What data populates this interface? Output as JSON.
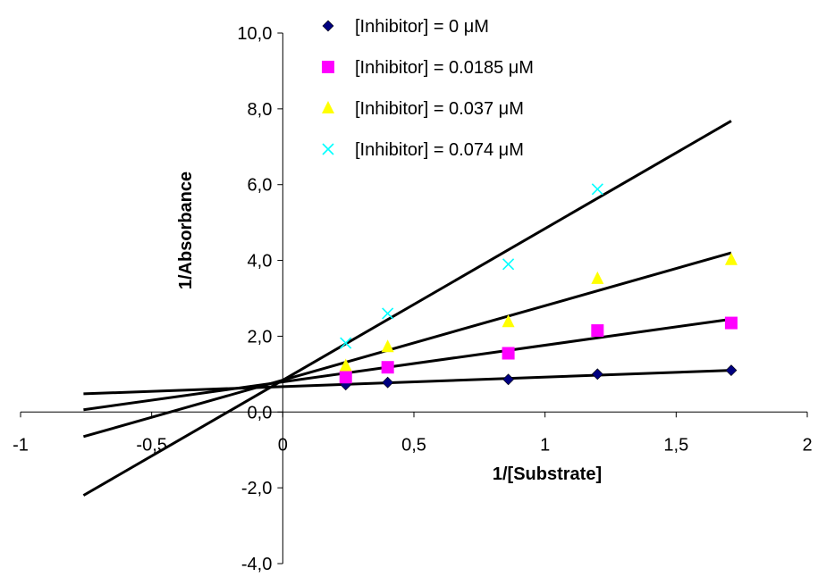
{
  "chart_data": {
    "type": "scatter",
    "title": "",
    "xlabel": "1/[Substrate]",
    "ylabel": "1/Absorbance",
    "xlim": [
      -1,
      2
    ],
    "ylim": [
      -4,
      10
    ],
    "x_ticks": [
      -1,
      -0.5,
      0,
      0.5,
      1,
      1.5,
      2
    ],
    "x_tick_labels": [
      "-1",
      "-0,5",
      "0",
      "0,5",
      "1",
      "1,5",
      "2"
    ],
    "y_ticks": [
      -4,
      -2,
      0,
      2,
      4,
      6,
      8,
      10
    ],
    "y_tick_labels": [
      "-4,0",
      "-2,0",
      "0,0",
      "2,0",
      "4,0",
      "6,0",
      "8,0",
      "10,0"
    ],
    "grid": false,
    "legend_position": "top-center",
    "series": [
      {
        "name": "[Inhibitor] = 0 μM",
        "marker": "diamond",
        "color": "#000080",
        "x": [
          0.24,
          0.4,
          0.86,
          1.2,
          1.71
        ],
        "y": [
          0.72,
          0.78,
          0.86,
          1.0,
          1.1
        ],
        "trendline": {
          "x": [
            -0.76,
            1.71
          ],
          "y": [
            0.48,
            1.1
          ]
        }
      },
      {
        "name": "[Inhibitor] = 0.0185 μM",
        "marker": "square",
        "color": "#FF00FF",
        "x": [
          0.24,
          0.4,
          0.86,
          1.2,
          1.71
        ],
        "y": [
          0.92,
          1.18,
          1.55,
          2.15,
          2.35
        ],
        "trendline": {
          "x": [
            -0.76,
            1.71
          ],
          "y": [
            0.06,
            2.45
          ]
        }
      },
      {
        "name": "[Inhibitor] = 0.037 μM",
        "marker": "triangle",
        "color": "#FFFF00",
        "x": [
          0.24,
          0.4,
          0.86,
          1.2,
          1.71
        ],
        "y": [
          1.22,
          1.72,
          2.38,
          3.52,
          4.02
        ],
        "trendline": {
          "x": [
            -0.76,
            1.71
          ],
          "y": [
            -0.65,
            4.2
          ]
        }
      },
      {
        "name": "[Inhibitor] = 0.074 μM",
        "marker": "x",
        "color": "#00FFFF",
        "x": [
          0.24,
          0.4,
          0.86,
          1.2
        ],
        "y": [
          1.82,
          2.6,
          3.9,
          5.88
        ],
        "trendline": {
          "x": [
            -0.76,
            1.71
          ],
          "y": [
            -2.2,
            7.68
          ]
        }
      }
    ]
  }
}
